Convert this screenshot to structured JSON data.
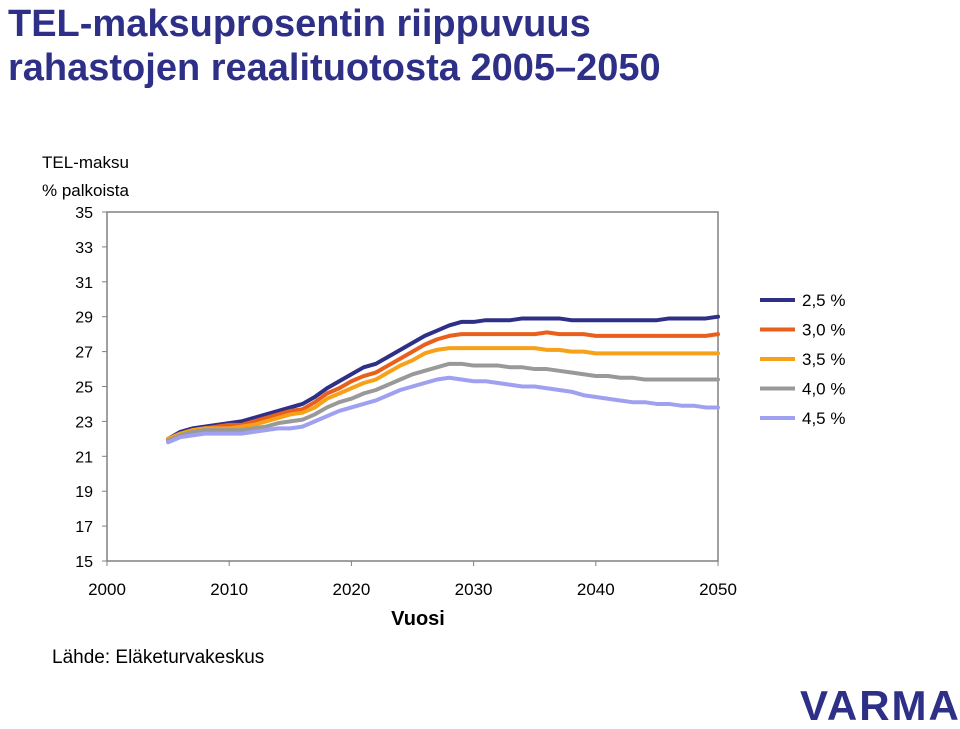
{
  "title_line1": "TEL-maksuprosentin riippuvuus",
  "title_line2": "rahastojen reaalituotosta 2005–2050",
  "y_title_line1": "TEL-maksu",
  "y_title_line2": "% palkoista",
  "source": "Lähde: Eläketurvakeskus",
  "logo_text": "VARMA",
  "colors": {
    "logo": "#2e2f86",
    "title": "#2e2f86"
  },
  "chart_data": {
    "type": "line",
    "title": "TEL-maksuprosentin riippuvuus rahastojen reaalituotosta 2005–2050",
    "xlabel": "Vuosi",
    "ylabel": "TEL-maksu % palkoista",
    "xlim": [
      2000,
      2050
    ],
    "ylim": [
      15,
      35
    ],
    "x_ticks": [
      2000,
      2010,
      2020,
      2030,
      2040,
      2050
    ],
    "y_ticks": [
      15,
      17,
      19,
      21,
      23,
      25,
      27,
      29,
      31,
      33,
      35
    ],
    "grid": false,
    "legend_position": "right",
    "x": [
      2005,
      2006,
      2007,
      2008,
      2009,
      2010,
      2011,
      2012,
      2013,
      2014,
      2015,
      2016,
      2017,
      2018,
      2019,
      2020,
      2021,
      2022,
      2023,
      2024,
      2025,
      2026,
      2027,
      2028,
      2029,
      2030,
      2031,
      2032,
      2033,
      2034,
      2035,
      2036,
      2037,
      2038,
      2039,
      2040,
      2041,
      2042,
      2043,
      2044,
      2045,
      2046,
      2047,
      2048,
      2049,
      2050
    ],
    "series": [
      {
        "name": "2,5 %",
        "color": "#2e2f86",
        "values": [
          22.0,
          22.4,
          22.6,
          22.7,
          22.8,
          22.9,
          23.0,
          23.2,
          23.4,
          23.6,
          23.8,
          24.0,
          24.4,
          24.9,
          25.3,
          25.7,
          26.1,
          26.3,
          26.7,
          27.1,
          27.5,
          27.9,
          28.2,
          28.5,
          28.7,
          28.7,
          28.8,
          28.8,
          28.8,
          28.9,
          28.9,
          28.9,
          28.9,
          28.8,
          28.8,
          28.8,
          28.8,
          28.8,
          28.8,
          28.8,
          28.8,
          28.9,
          28.9,
          28.9,
          28.9,
          29.0
        ]
      },
      {
        "name": "3,0 %",
        "color": "#e8601c",
        "values": [
          22.0,
          22.3,
          22.5,
          22.6,
          22.7,
          22.8,
          22.8,
          23.0,
          23.2,
          23.4,
          23.6,
          23.7,
          24.1,
          24.6,
          24.9,
          25.3,
          25.6,
          25.8,
          26.2,
          26.6,
          27.0,
          27.4,
          27.7,
          27.9,
          28.0,
          28.0,
          28.0,
          28.0,
          28.0,
          28.0,
          28.0,
          28.1,
          28.0,
          28.0,
          28.0,
          27.9,
          27.9,
          27.9,
          27.9,
          27.9,
          27.9,
          27.9,
          27.9,
          27.9,
          27.9,
          28.0
        ]
      },
      {
        "name": "3,5 %",
        "color": "#f7a11a",
        "values": [
          22.0,
          22.3,
          22.5,
          22.6,
          22.6,
          22.6,
          22.7,
          22.8,
          23.0,
          23.2,
          23.4,
          23.5,
          23.8,
          24.3,
          24.6,
          24.9,
          25.2,
          25.4,
          25.8,
          26.2,
          26.5,
          26.9,
          27.1,
          27.2,
          27.2,
          27.2,
          27.2,
          27.2,
          27.2,
          27.2,
          27.2,
          27.1,
          27.1,
          27.0,
          27.0,
          26.9,
          26.9,
          26.9,
          26.9,
          26.9,
          26.9,
          26.9,
          26.9,
          26.9,
          26.9,
          26.9
        ]
      },
      {
        "name": "4,0 %",
        "color": "#999999",
        "values": [
          21.9,
          22.2,
          22.4,
          22.5,
          22.5,
          22.5,
          22.5,
          22.6,
          22.7,
          22.9,
          23.0,
          23.1,
          23.4,
          23.8,
          24.1,
          24.3,
          24.6,
          24.8,
          25.1,
          25.4,
          25.7,
          25.9,
          26.1,
          26.3,
          26.3,
          26.2,
          26.2,
          26.2,
          26.1,
          26.1,
          26.0,
          26.0,
          25.9,
          25.8,
          25.7,
          25.6,
          25.6,
          25.5,
          25.5,
          25.4,
          25.4,
          25.4,
          25.4,
          25.4,
          25.4,
          25.4
        ]
      },
      {
        "name": "4,5 %",
        "color": "#a0a0f0",
        "values": [
          21.8,
          22.1,
          22.2,
          22.3,
          22.3,
          22.3,
          22.3,
          22.4,
          22.5,
          22.6,
          22.6,
          22.7,
          23.0,
          23.3,
          23.6,
          23.8,
          24.0,
          24.2,
          24.5,
          24.8,
          25.0,
          25.2,
          25.4,
          25.5,
          25.4,
          25.3,
          25.3,
          25.2,
          25.1,
          25.0,
          25.0,
          24.9,
          24.8,
          24.7,
          24.5,
          24.4,
          24.3,
          24.2,
          24.1,
          24.1,
          24.0,
          24.0,
          23.9,
          23.9,
          23.8,
          23.8
        ]
      }
    ]
  }
}
